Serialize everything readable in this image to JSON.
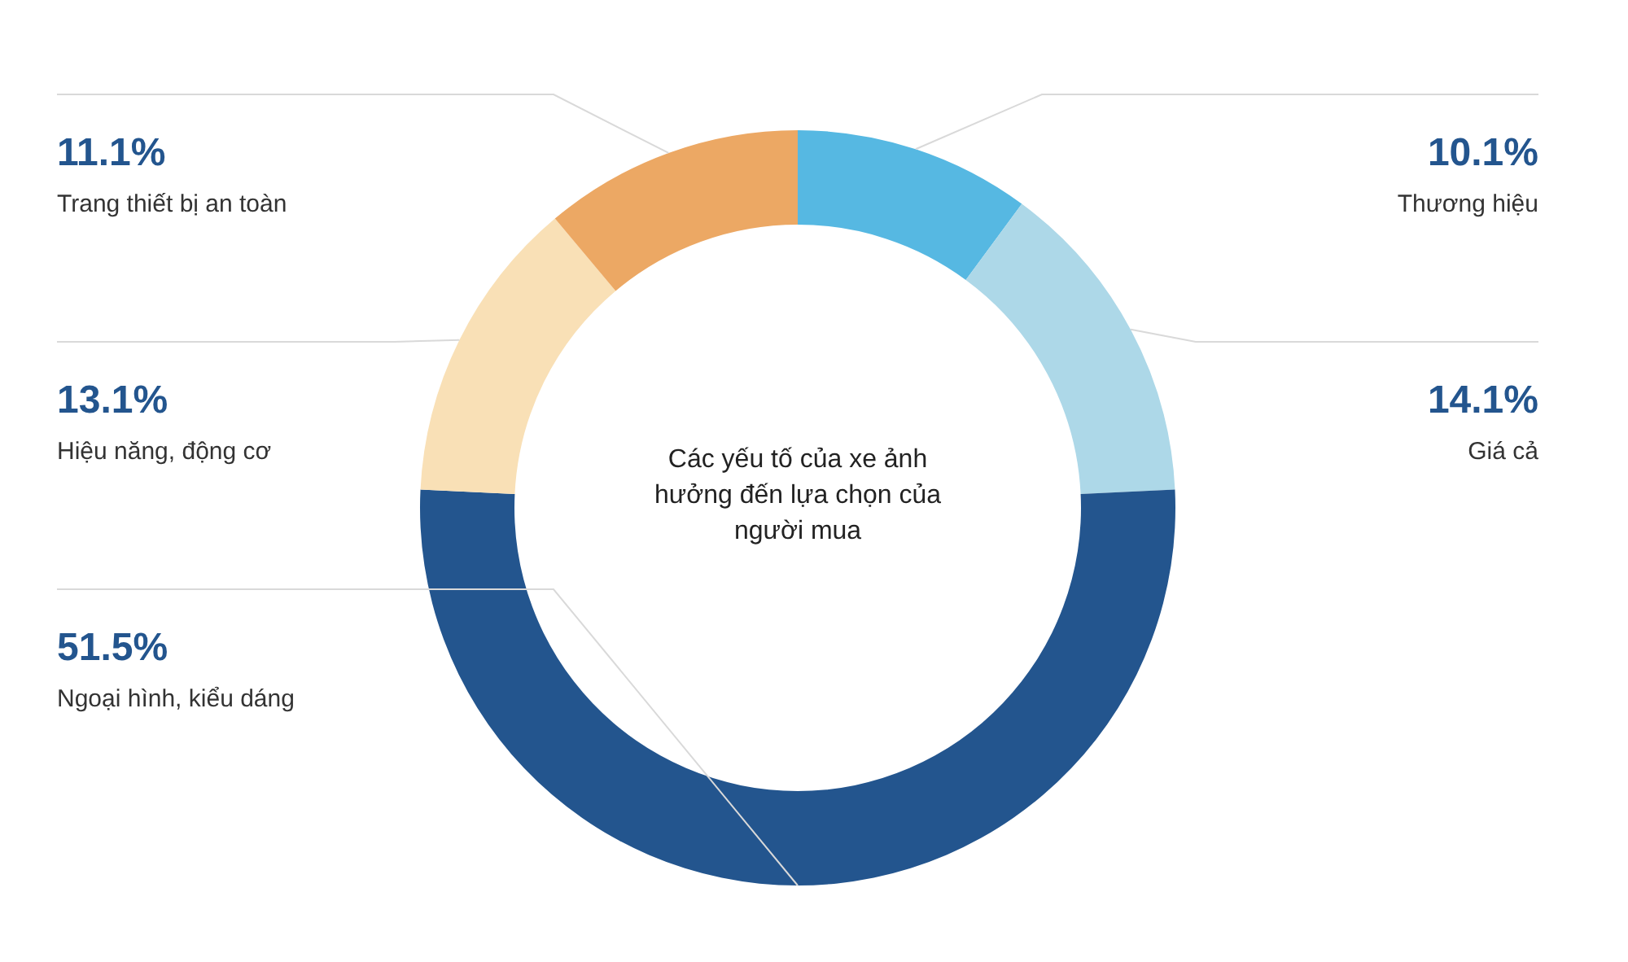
{
  "chart_data": {
    "type": "donut",
    "title": "Các yếu tố của xe ảnh hưởng đến lựa chọn của người mua",
    "categories": [
      "Thương hiệu",
      "Giá cả",
      "Ngoại hình, kiểu dáng",
      "Hiệu năng, động cơ",
      "Trang thiết bị an toàn"
    ],
    "values": [
      10.1,
      14.1,
      51.5,
      13.1,
      11.1
    ],
    "value_labels": [
      "10.1%",
      "14.1%",
      "51.5%",
      "13.1%",
      "11.1%"
    ],
    "colors": [
      "#56b8e2",
      "#add8e8",
      "#23558e",
      "#f9e0b6",
      "#eca864"
    ],
    "legend": false
  }
}
